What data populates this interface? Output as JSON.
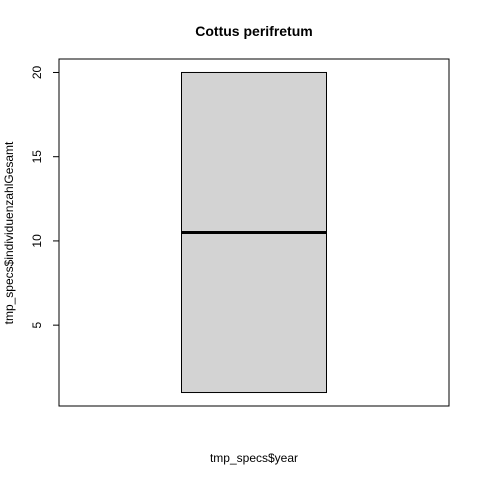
{
  "chart_data": {
    "type": "boxplot",
    "title": "Cottus perifretum",
    "xlabel": "tmp_specs$year",
    "ylabel": "tmp_specs$individuenzahlGesamt",
    "ylim": [
      0.2,
      20.8
    ],
    "yticks": [
      5,
      10,
      15,
      20
    ],
    "grid": false,
    "legend": "none",
    "boxes": [
      {
        "min": 1,
        "q1": 1,
        "median": 10.5,
        "q3": 20,
        "max": 20
      }
    ],
    "colors": {
      "box_fill": "#d3d3d3",
      "box_stroke": "#000000",
      "median": "#000000"
    }
  }
}
